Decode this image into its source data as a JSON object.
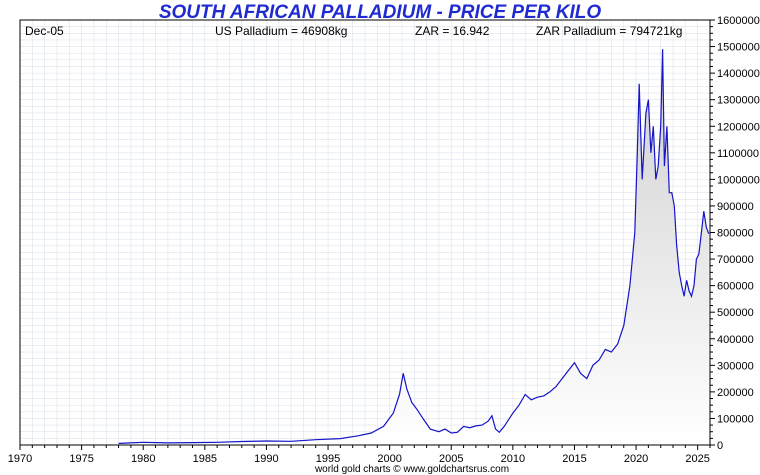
{
  "chart_data": {
    "type": "area",
    "title": "SOUTH AFRICAN PALLADIUM - PRICE PER KILO",
    "header": {
      "date": "Dec-05",
      "us": "US Palladium = 46908kg",
      "zar_rate": "ZAR = 16.942",
      "zar": "ZAR Palladium = 794721kg"
    },
    "footer": "world gold charts © www.goldchartsrus.com",
    "xlim": [
      1970,
      2026
    ],
    "ylim": [
      0,
      1600000
    ],
    "x_ticks": [
      1970,
      1975,
      1980,
      1985,
      1990,
      1995,
      2000,
      2005,
      2010,
      2015,
      2020,
      2025
    ],
    "y_ticks": [
      0,
      100000,
      200000,
      300000,
      400000,
      500000,
      600000,
      700000,
      800000,
      900000,
      1000000,
      1100000,
      1200000,
      1300000,
      1400000,
      1500000,
      1600000
    ],
    "colors": {
      "line": "#1414c8",
      "fill_top": "#cfcfcf",
      "fill_bottom": "#ffffff",
      "grid": "#dde3ec",
      "title": "#1f2bd1"
    },
    "series": [
      {
        "name": "ZAR Palladium per kilo",
        "x": [
          1978.0,
          1980.0,
          1982.0,
          1984.0,
          1986.0,
          1988.0,
          1990.0,
          1992.0,
          1994.0,
          1996.0,
          1997.5,
          1998.5,
          1999.5,
          2000.3,
          2000.8,
          2001.1,
          2001.4,
          2001.8,
          2002.2,
          2002.7,
          2003.3,
          2004.0,
          2004.5,
          2005.0,
          2005.5,
          2006.0,
          2006.5,
          2007.0,
          2007.5,
          2008.0,
          2008.3,
          2008.6,
          2008.9,
          2009.3,
          2010.0,
          2010.5,
          2011.0,
          2011.5,
          2012.0,
          2012.5,
          2013.0,
          2013.5,
          2014.0,
          2014.5,
          2015.0,
          2015.5,
          2016.0,
          2016.5,
          2017.0,
          2017.5,
          2018.0,
          2018.5,
          2019.0,
          2019.5,
          2019.9,
          2020.1,
          2020.25,
          2020.5,
          2020.8,
          2021.0,
          2021.2,
          2021.4,
          2021.6,
          2021.8,
          2022.0,
          2022.15,
          2022.3,
          2022.5,
          2022.7,
          2022.9,
          2023.1,
          2023.3,
          2023.5,
          2023.7,
          2023.9,
          2024.1,
          2024.3,
          2024.5,
          2024.7,
          2024.9,
          2025.1,
          2025.3,
          2025.5,
          2025.7,
          2025.9
        ],
        "values": [
          6000,
          10000,
          8000,
          9000,
          10000,
          13000,
          15000,
          14000,
          20000,
          24000,
          35000,
          45000,
          70000,
          120000,
          190000,
          270000,
          210000,
          160000,
          135000,
          100000,
          60000,
          50000,
          60000,
          45000,
          48000,
          70000,
          65000,
          72000,
          75000,
          90000,
          110000,
          60000,
          48000,
          70000,
          120000,
          150000,
          190000,
          170000,
          180000,
          185000,
          200000,
          220000,
          250000,
          280000,
          310000,
          270000,
          250000,
          300000,
          320000,
          360000,
          350000,
          380000,
          450000,
          600000,
          800000,
          1100000,
          1360000,
          1000000,
          1250000,
          1300000,
          1100000,
          1200000,
          1000000,
          1050000,
          1200000,
          1490000,
          1050000,
          1200000,
          950000,
          950000,
          900000,
          750000,
          650000,
          600000,
          560000,
          620000,
          580000,
          560000,
          600000,
          700000,
          720000,
          800000,
          880000,
          820000,
          795000
        ]
      }
    ]
  }
}
